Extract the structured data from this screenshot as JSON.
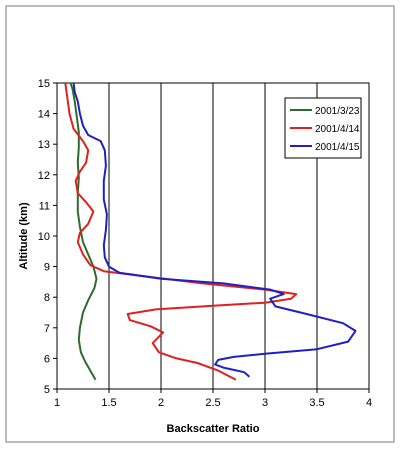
{
  "chart_data": {
    "type": "line",
    "xlabel": "Backscatter Ratio",
    "ylabel": "Altitude (km)",
    "xlim": [
      1,
      4
    ],
    "ylim": [
      5,
      15
    ],
    "x_ticks": [
      "1",
      "1.5",
      "2",
      "2.5",
      "3",
      "3.5",
      "4"
    ],
    "y_ticks": [
      "5",
      "6",
      "7",
      "8",
      "9",
      "10",
      "11",
      "12",
      "13",
      "14",
      "15"
    ],
    "grid": "vertical",
    "legend_position": "top-right",
    "series": [
      {
        "name": "2001/3/23",
        "color": "#2e6b2e",
        "points": [
          [
            1.37,
            5.3
          ],
          [
            1.32,
            5.6
          ],
          [
            1.27,
            5.9
          ],
          [
            1.23,
            6.2
          ],
          [
            1.21,
            6.6
          ],
          [
            1.22,
            7.0
          ],
          [
            1.25,
            7.5
          ],
          [
            1.3,
            7.9
          ],
          [
            1.36,
            8.3
          ],
          [
            1.38,
            8.6
          ],
          [
            1.35,
            9.0
          ],
          [
            1.3,
            9.4
          ],
          [
            1.25,
            9.8
          ],
          [
            1.22,
            10.3
          ],
          [
            1.2,
            10.8
          ],
          [
            1.2,
            11.4
          ],
          [
            1.21,
            11.9
          ],
          [
            1.2,
            12.4
          ],
          [
            1.21,
            12.9
          ],
          [
            1.21,
            13.4
          ],
          [
            1.19,
            13.9
          ],
          [
            1.17,
            14.4
          ],
          [
            1.15,
            14.8
          ],
          [
            1.13,
            15.0
          ]
        ]
      },
      {
        "name": "2001/4/14",
        "color": "#e02020",
        "points": [
          [
            2.72,
            5.3
          ],
          [
            2.55,
            5.6
          ],
          [
            2.35,
            5.85
          ],
          [
            2.15,
            6.0
          ],
          [
            1.98,
            6.2
          ],
          [
            1.92,
            6.5
          ],
          [
            2.02,
            6.85
          ],
          [
            1.9,
            7.05
          ],
          [
            1.7,
            7.25
          ],
          [
            1.68,
            7.45
          ],
          [
            1.95,
            7.6
          ],
          [
            2.5,
            7.72
          ],
          [
            3.0,
            7.82
          ],
          [
            3.25,
            7.95
          ],
          [
            3.3,
            8.1
          ],
          [
            3.0,
            8.25
          ],
          [
            2.4,
            8.45
          ],
          [
            1.8,
            8.7
          ],
          [
            1.45,
            8.85
          ],
          [
            1.32,
            9.05
          ],
          [
            1.25,
            9.4
          ],
          [
            1.2,
            9.8
          ],
          [
            1.22,
            10.1
          ],
          [
            1.3,
            10.4
          ],
          [
            1.35,
            10.8
          ],
          [
            1.28,
            11.1
          ],
          [
            1.2,
            11.4
          ],
          [
            1.18,
            11.8
          ],
          [
            1.22,
            12.1
          ],
          [
            1.28,
            12.4
          ],
          [
            1.3,
            12.8
          ],
          [
            1.25,
            13.1
          ],
          [
            1.16,
            13.5
          ],
          [
            1.12,
            14.0
          ],
          [
            1.1,
            14.5
          ],
          [
            1.08,
            15.0
          ]
        ]
      },
      {
        "name": "2001/4/15",
        "color": "#2020c0",
        "points": [
          [
            2.85,
            5.4
          ],
          [
            2.8,
            5.55
          ],
          [
            2.6,
            5.7
          ],
          [
            2.52,
            5.8
          ],
          [
            2.55,
            5.95
          ],
          [
            2.7,
            6.05
          ],
          [
            3.0,
            6.15
          ],
          [
            3.5,
            6.3
          ],
          [
            3.8,
            6.55
          ],
          [
            3.87,
            6.9
          ],
          [
            3.75,
            7.15
          ],
          [
            3.4,
            7.45
          ],
          [
            3.1,
            7.7
          ],
          [
            3.05,
            7.95
          ],
          [
            3.18,
            8.1
          ],
          [
            3.05,
            8.25
          ],
          [
            2.6,
            8.45
          ],
          [
            2.0,
            8.6
          ],
          [
            1.6,
            8.8
          ],
          [
            1.5,
            9.0
          ],
          [
            1.46,
            9.3
          ],
          [
            1.45,
            9.7
          ],
          [
            1.47,
            10.2
          ],
          [
            1.48,
            10.7
          ],
          [
            1.45,
            11.2
          ],
          [
            1.45,
            11.8
          ],
          [
            1.47,
            12.3
          ],
          [
            1.46,
            12.8
          ],
          [
            1.42,
            13.1
          ],
          [
            1.3,
            13.3
          ],
          [
            1.25,
            13.6
          ],
          [
            1.22,
            14.0
          ],
          [
            1.2,
            14.4
          ],
          [
            1.17,
            14.7
          ],
          [
            1.16,
            15.0
          ]
        ]
      }
    ]
  }
}
